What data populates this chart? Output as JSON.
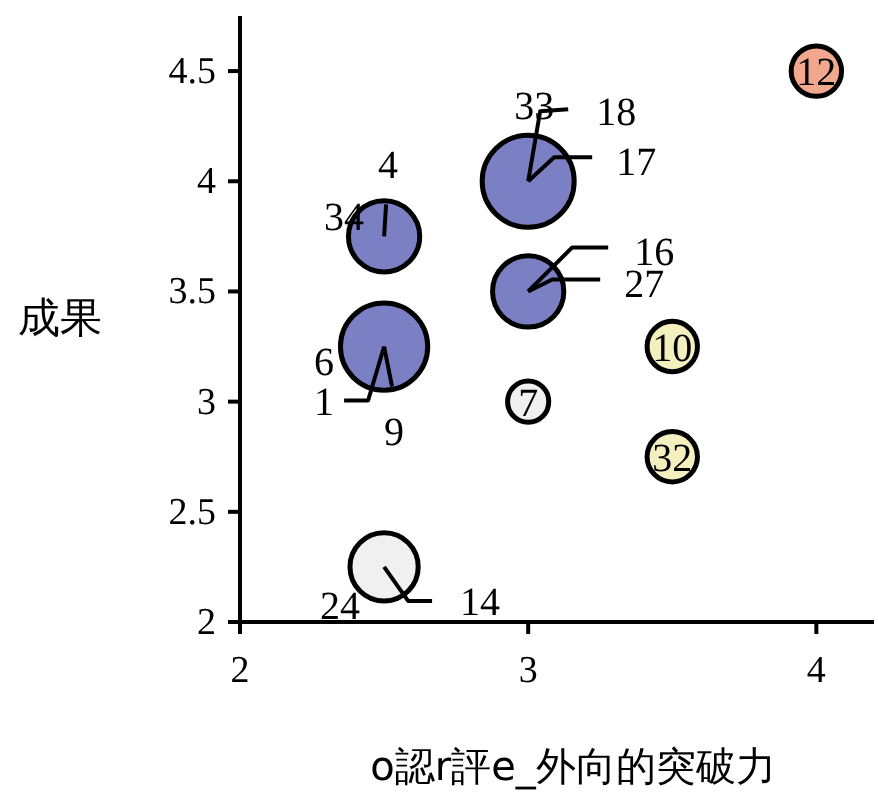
{
  "chart_data": {
    "type": "bubble",
    "xlabel": "o認r評e_外向的突破力",
    "ylabel": "成果",
    "xlim": [
      2,
      4.2
    ],
    "xticks": [
      2,
      3,
      4
    ],
    "ylim": [
      2,
      4.75
    ],
    "yticks": [
      2,
      2.5,
      3,
      3.5,
      4,
      4.5
    ],
    "grid": false,
    "series": [
      {
        "x": [
          2.5,
          3,
          3,
          2.5,
          3,
          3.5,
          3.5,
          4,
          2.5
        ],
        "values": [
          3.75,
          4,
          3.5,
          3.25,
          3,
          3.25,
          2.75,
          4.5,
          2.25
        ],
        "sizes": [
          0.6,
          1,
          0.6,
          0.9,
          0.2,
          0.3,
          0.3,
          0.3,
          0.55
        ],
        "colors": [
          "#7b7fc4",
          "#7b7fc4",
          "#7b7fc4",
          "#7b7fc4",
          "#f0f0f0",
          "#f3efbf",
          "#f3efbf",
          "#f2a88e",
          "#f0f0f0"
        ]
      }
    ],
    "annotations": [
      {
        "text": "4",
        "x": 2.5,
        "y": 3.75
      },
      {
        "text": "34",
        "x": 2.5,
        "y": 3.75
      },
      {
        "text": "33",
        "x": 3,
        "y": 4
      },
      {
        "text": "18",
        "x": 3,
        "y": 4
      },
      {
        "text": "17",
        "x": 3,
        "y": 4
      },
      {
        "text": "16",
        "x": 3,
        "y": 3.5
      },
      {
        "text": "27",
        "x": 3,
        "y": 3.5
      },
      {
        "text": "6",
        "x": 2.5,
        "y": 3.25
      },
      {
        "text": "1",
        "x": 2.5,
        "y": 3.25
      },
      {
        "text": "9",
        "x": 2.5,
        "y": 3.25
      },
      {
        "text": "7",
        "x": 3,
        "y": 3
      },
      {
        "text": "10",
        "x": 3.5,
        "y": 3.25
      },
      {
        "text": "32",
        "x": 3.5,
        "y": 2.75
      },
      {
        "text": "12",
        "x": 4,
        "y": 4.5
      },
      {
        "text": "24",
        "x": 2.5,
        "y": 2.25
      },
      {
        "text": "14",
        "x": 2.5,
        "y": 2.25
      }
    ]
  }
}
